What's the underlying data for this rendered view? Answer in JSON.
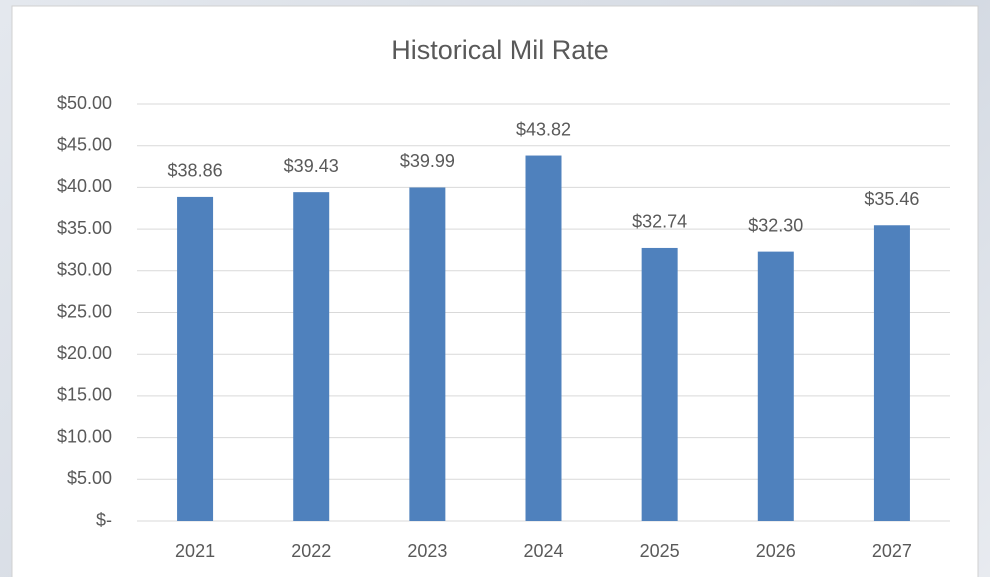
{
  "chart_data": {
    "type": "bar",
    "title": "Historical Mil Rate",
    "categories": [
      "2021",
      "2022",
      "2023",
      "2024",
      "2025",
      "2026",
      "2027"
    ],
    "values": [
      38.86,
      39.43,
      39.99,
      43.82,
      32.74,
      32.3,
      35.46
    ],
    "value_labels": [
      "$38.86",
      "$39.43",
      "$39.99",
      "$43.82",
      "$32.74",
      "$32.30",
      "$35.46"
    ],
    "color": "#4f81bd",
    "ylim": [
      0,
      50
    ],
    "yticks": [
      {
        "value": 0,
        "label": "$-"
      },
      {
        "value": 5,
        "label": "$5.00"
      },
      {
        "value": 10,
        "label": "$10.00"
      },
      {
        "value": 15,
        "label": "$15.00"
      },
      {
        "value": 20,
        "label": "$20.00"
      },
      {
        "value": 25,
        "label": "$25.00"
      },
      {
        "value": 30,
        "label": "$30.00"
      },
      {
        "value": 35,
        "label": "$35.00"
      },
      {
        "value": 40,
        "label": "$40.00"
      },
      {
        "value": 45,
        "label": "$45.00"
      },
      {
        "value": 50,
        "label": "$50.00"
      }
    ],
    "grid": true
  }
}
